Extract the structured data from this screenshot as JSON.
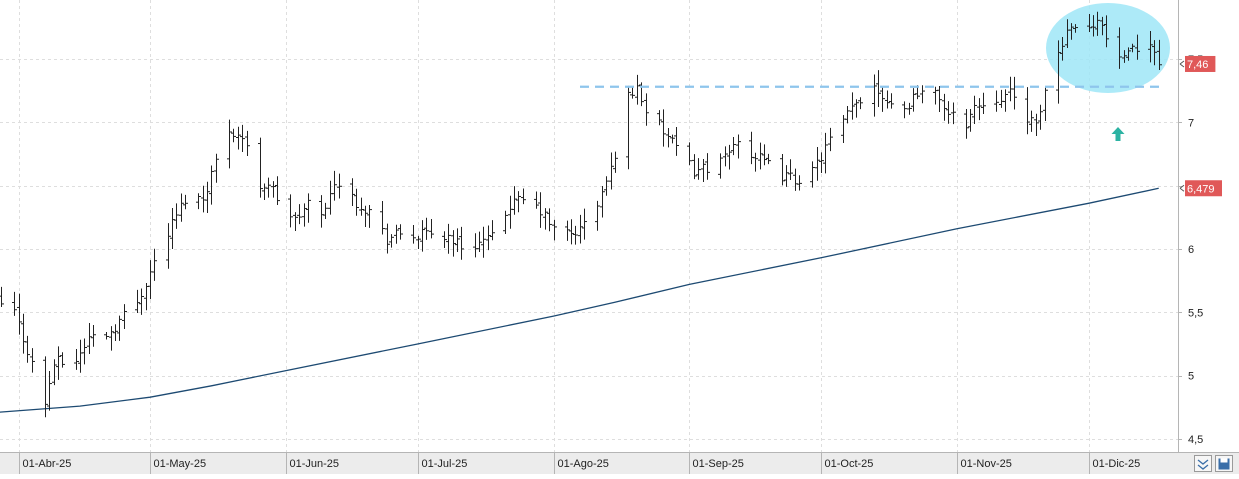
{
  "chart_data": {
    "type": "line",
    "subtype": "ohlc-bar",
    "title": "",
    "xlabel": "",
    "ylabel": "",
    "ylim": [
      4.45,
      9.0
    ],
    "grid": true,
    "x_tick_labels": [
      "01-Abr-25",
      "01-May-25",
      "01-Jun-25",
      "01-Jul-25",
      "01-Ago-25",
      "01-Sep-25",
      "01-Oct-25",
      "01-Nov-25",
      "01-Dic-25"
    ],
    "y_tick_labels": [
      "4,5",
      "5",
      "5,5",
      "6",
      "6,5",
      "7",
      "7,5"
    ],
    "y_ticks": [
      4.5,
      5,
      5.5,
      6,
      6.5,
      7,
      7.5
    ],
    "price_anchors": [
      [
        "2025-03-27",
        5.58
      ],
      [
        "2025-03-31",
        5.5
      ],
      [
        "2025-04-03",
        5.2
      ],
      [
        "2025-04-07",
        4.78
      ],
      [
        "2025-04-09",
        5.1
      ],
      [
        "2025-04-14",
        5.12
      ],
      [
        "2025-04-17",
        5.3
      ],
      [
        "2025-04-22",
        5.35
      ],
      [
        "2025-04-25",
        5.48
      ],
      [
        "2025-04-28",
        5.58
      ],
      [
        "2025-05-02",
        5.9
      ],
      [
        "2025-05-06",
        6.2
      ],
      [
        "2025-05-09",
        6.4
      ],
      [
        "2025-05-13",
        6.4
      ],
      [
        "2025-05-15",
        6.6
      ],
      [
        "2025-05-19",
        6.95
      ],
      [
        "2025-05-22",
        6.88
      ],
      [
        "2025-05-26",
        6.5
      ],
      [
        "2025-05-28",
        6.52
      ],
      [
        "2025-05-30",
        6.4
      ],
      [
        "2025-06-03",
        6.22
      ],
      [
        "2025-06-06",
        6.35
      ],
      [
        "2025-06-10",
        6.3
      ],
      [
        "2025-06-12",
        6.55
      ],
      [
        "2025-06-16",
        6.4
      ],
      [
        "2025-06-20",
        6.3
      ],
      [
        "2025-06-24",
        6.08
      ],
      [
        "2025-06-27",
        6.12
      ],
      [
        "2025-07-01",
        6.1
      ],
      [
        "2025-07-04",
        6.12
      ],
      [
        "2025-07-08",
        6.1
      ],
      [
        "2025-07-11",
        6.02
      ],
      [
        "2025-07-15",
        6.05
      ],
      [
        "2025-07-18",
        6.08
      ],
      [
        "2025-07-22",
        6.35
      ],
      [
        "2025-07-25",
        6.38
      ],
      [
        "2025-07-29",
        6.3
      ],
      [
        "2025-08-01",
        6.15
      ],
      [
        "2025-08-05",
        6.12
      ],
      [
        "2025-08-07",
        6.15
      ],
      [
        "2025-08-11",
        6.35
      ],
      [
        "2025-08-14",
        6.62
      ],
      [
        "2025-08-18",
        7.2
      ],
      [
        "2025-08-20",
        7.28
      ],
      [
        "2025-08-22",
        7.1
      ],
      [
        "2025-08-27",
        6.88
      ],
      [
        "2025-08-29",
        6.78
      ],
      [
        "2025-09-02",
        6.62
      ],
      [
        "2025-09-05",
        6.65
      ],
      [
        "2025-09-09",
        6.7
      ],
      [
        "2025-09-12",
        6.88
      ],
      [
        "2025-09-15",
        6.75
      ],
      [
        "2025-09-18",
        6.68
      ],
      [
        "2025-09-22",
        6.58
      ],
      [
        "2025-09-25",
        6.55
      ],
      [
        "2025-09-29",
        6.6
      ],
      [
        "2025-10-02",
        6.8
      ],
      [
        "2025-10-06",
        7.0
      ],
      [
        "2025-10-09",
        7.15
      ],
      [
        "2025-10-13",
        7.3
      ],
      [
        "2025-10-16",
        7.18
      ],
      [
        "2025-10-20",
        7.1
      ],
      [
        "2025-10-23",
        7.25
      ],
      [
        "2025-10-28",
        7.2
      ],
      [
        "2025-10-30",
        7.05
      ],
      [
        "2025-11-03",
        7.0
      ],
      [
        "2025-11-05",
        7.12
      ],
      [
        "2025-11-10",
        7.2
      ],
      [
        "2025-11-13",
        7.22
      ],
      [
        "2025-11-17",
        7.05
      ],
      [
        "2025-11-19",
        6.95
      ],
      [
        "2025-11-21",
        7.25
      ],
      [
        "2025-11-24",
        7.55
      ],
      [
        "2025-11-27",
        7.8
      ],
      [
        "2025-12-01",
        7.72
      ],
      [
        "2025-12-03",
        7.85
      ],
      [
        "2025-12-05",
        7.65
      ],
      [
        "2025-12-09",
        7.48
      ],
      [
        "2025-12-11",
        7.55
      ],
      [
        "2025-12-15",
        7.66
      ],
      [
        "2025-12-17",
        7.46
      ]
    ],
    "series": [
      {
        "values_type": "ohlc"
      },
      {
        "values_type": "moving-average",
        "points": [
          [
            "2025-03-27",
            4.71
          ],
          [
            "2025-04-15",
            4.76
          ],
          [
            "2025-05-01",
            4.83
          ],
          [
            "2025-05-15",
            4.92
          ],
          [
            "2025-06-01",
            5.04
          ],
          [
            "2025-07-01",
            5.25
          ],
          [
            "2025-08-01",
            5.47
          ],
          [
            "2025-08-15",
            5.58
          ],
          [
            "2025-09-01",
            5.72
          ],
          [
            "2025-10-01",
            5.93
          ],
          [
            "2025-11-01",
            6.16
          ],
          [
            "2025-12-01",
            6.36
          ],
          [
            "2025-12-17",
            6.479
          ]
        ]
      }
    ],
    "resistance_level": 7.28,
    "last_price_label": "7,46",
    "moving_average_label": "6,479",
    "colors": {
      "bars": "#222222",
      "moving_average": "#1d4a72",
      "resistance": "#8ec5ec",
      "highlight": "#9fe6f7",
      "arrow": "#2cb3a3",
      "badge": "#e05858"
    }
  }
}
